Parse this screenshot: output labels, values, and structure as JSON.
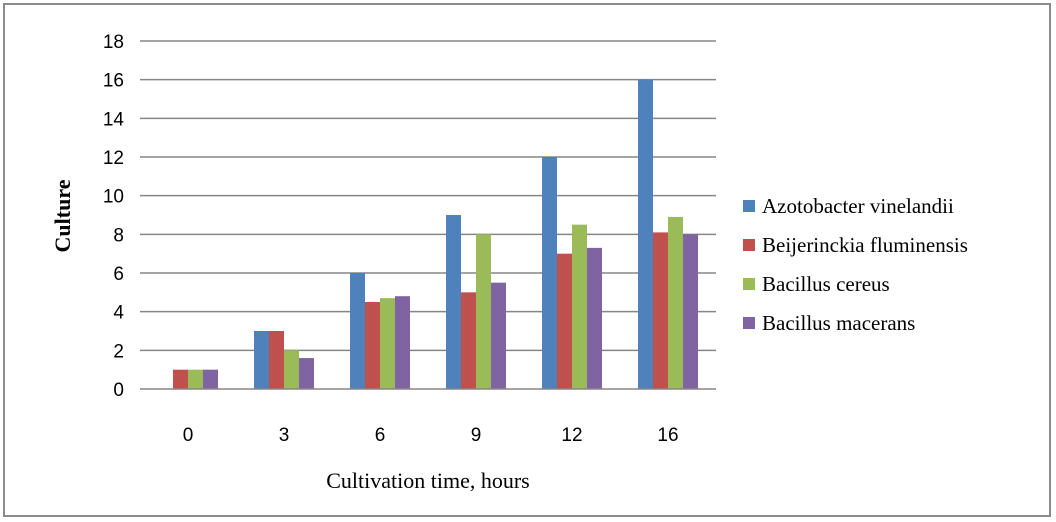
{
  "chart_data": {
    "type": "bar",
    "title": "",
    "xlabel": "Cultivation time, hours",
    "ylabel": "Culture",
    "categories": [
      "0",
      "3",
      "6",
      "9",
      "12",
      "16"
    ],
    "ylim": [
      0,
      18
    ],
    "yticks": [
      0,
      2,
      4,
      6,
      8,
      10,
      12,
      14,
      16,
      18
    ],
    "grid": true,
    "legend_position": "right",
    "series": [
      {
        "name": "Azotobacter vinelandii",
        "color": "#4f81bd",
        "values": [
          0,
          3,
          6,
          9,
          12,
          16
        ]
      },
      {
        "name": "Beijerinckia fluminensis",
        "color": "#c0504d",
        "values": [
          1,
          3,
          4.5,
          5,
          7,
          8.1
        ]
      },
      {
        "name": "Bacillus cereus",
        "color": "#9bbb59",
        "values": [
          1,
          2,
          4.7,
          8,
          8.5,
          8.9
        ]
      },
      {
        "name": "Bacillus macerans",
        "color": "#8064a2",
        "values": [
          1,
          1.6,
          4.8,
          5.5,
          7.3,
          8
        ]
      }
    ]
  }
}
